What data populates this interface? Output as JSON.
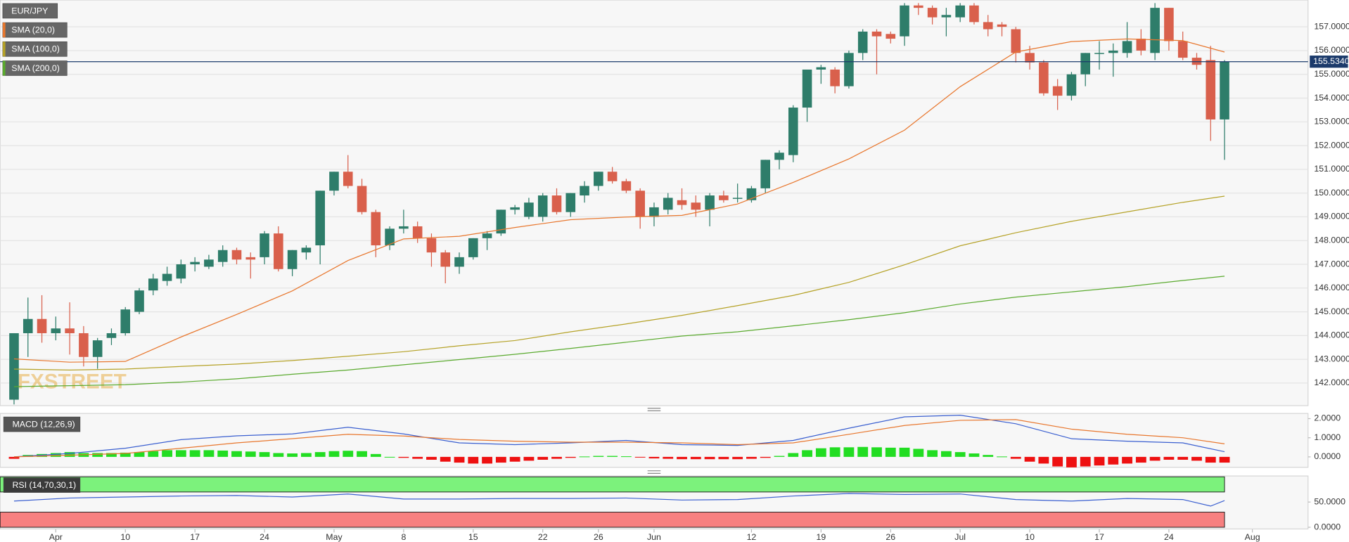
{
  "chart_data": [
    {
      "type": "candlestick",
      "title": "EUR/JPY",
      "watermark": "FXSTREET",
      "up_color": "#2e7d6a",
      "down_color": "#d9604c",
      "open": [
        141.3,
        144.1,
        144.7,
        144.1,
        144.3,
        144.1,
        143.1,
        143.9,
        144.1,
        145.0,
        145.9,
        146.3,
        146.4,
        147.0,
        146.9,
        147.1,
        147.6,
        147.3,
        147.3,
        148.3,
        146.8,
        147.5,
        147.8,
        150.1,
        150.9,
        150.3,
        149.2,
        147.8,
        148.5,
        148.6,
        148.1,
        147.5,
        146.9,
        147.3,
        148.1,
        148.3,
        149.3,
        149.0,
        149.0,
        149.9,
        149.2,
        149.9,
        150.3,
        150.9,
        150.5,
        150.1,
        149.0,
        149.3,
        149.7,
        149.6,
        149.3,
        149.9,
        149.8,
        149.7,
        150.2,
        151.4,
        151.6,
        153.6,
        155.2,
        155.2,
        154.5,
        155.9,
        156.8,
        156.7,
        156.6,
        157.9,
        157.8,
        157.4,
        157.4,
        157.9,
        157.2,
        157.1,
        156.9,
        155.9,
        155.5,
        154.5,
        154.1,
        155.0,
        155.9,
        155.9,
        155.9,
        156.5,
        155.9,
        157.8,
        156.4,
        155.7,
        155.6,
        153.1
      ],
      "high": [
        144.1,
        145.6,
        145.7,
        144.8,
        145.4,
        144.4,
        143.9,
        144.3,
        145.2,
        146.0,
        146.6,
        146.9,
        147.2,
        147.3,
        147.4,
        147.8,
        147.7,
        147.5,
        148.4,
        148.6,
        147.6,
        147.8,
        150.1,
        150.9,
        151.6,
        150.6,
        149.3,
        148.6,
        149.3,
        148.8,
        148.3,
        147.6,
        147.5,
        148.1,
        148.4,
        149.3,
        149.5,
        149.8,
        150.0,
        150.2,
        150.0,
        150.5,
        150.9,
        151.1,
        150.6,
        150.2,
        149.6,
        150.0,
        150.2,
        149.9,
        150.0,
        150.1,
        150.4,
        150.3,
        151.4,
        151.8,
        153.7,
        155.2,
        155.4,
        155.3,
        156.0,
        156.9,
        156.9,
        156.8,
        158.0,
        158.0,
        157.9,
        157.8,
        158.0,
        158.0,
        157.5,
        157.2,
        157.0,
        156.2,
        155.6,
        154.8,
        155.1,
        155.9,
        156.4,
        156.3,
        157.2,
        156.9,
        158.0,
        157.8,
        156.8,
        155.9,
        156.2,
        155.6
      ],
      "low": [
        141.1,
        143.1,
        143.7,
        143.8,
        143.2,
        142.7,
        142.6,
        143.6,
        144.0,
        144.9,
        145.7,
        146.1,
        146.2,
        146.7,
        146.8,
        146.9,
        147.0,
        146.4,
        147.0,
        146.7,
        146.5,
        147.2,
        147.0,
        149.9,
        150.2,
        149.1,
        147.3,
        147.6,
        148.3,
        147.9,
        146.9,
        146.2,
        146.6,
        147.2,
        147.6,
        148.2,
        149.1,
        148.9,
        148.8,
        149.1,
        149.0,
        149.6,
        150.1,
        150.4,
        150.0,
        148.5,
        148.6,
        149.1,
        149.3,
        149.0,
        148.6,
        149.6,
        149.6,
        149.6,
        150.0,
        151.0,
        151.3,
        153.0,
        154.6,
        154.2,
        154.4,
        155.6,
        155.0,
        156.3,
        156.2,
        157.5,
        157.1,
        156.6,
        157.2,
        157.1,
        156.6,
        156.6,
        155.5,
        155.2,
        154.1,
        153.5,
        153.9,
        154.5,
        155.2,
        154.9,
        155.7,
        155.8,
        155.6,
        156.0,
        155.6,
        155.2,
        152.2,
        151.4
      ],
      "close": [
        144.1,
        144.7,
        144.1,
        144.3,
        144.1,
        143.1,
        143.8,
        144.1,
        145.1,
        145.9,
        146.4,
        146.6,
        147.0,
        147.1,
        147.2,
        147.6,
        147.2,
        147.2,
        148.3,
        146.8,
        147.6,
        147.7,
        150.1,
        150.9,
        150.3,
        149.2,
        147.8,
        148.5,
        148.6,
        148.1,
        147.5,
        146.9,
        147.3,
        148.1,
        148.3,
        149.3,
        149.4,
        149.6,
        149.9,
        149.2,
        150.0,
        150.3,
        150.9,
        150.5,
        150.1,
        149.0,
        149.4,
        149.8,
        149.5,
        149.3,
        149.9,
        149.7,
        149.8,
        150.2,
        151.4,
        151.7,
        153.6,
        155.2,
        155.3,
        154.5,
        155.9,
        156.8,
        156.6,
        156.5,
        157.9,
        157.8,
        157.4,
        157.5,
        157.9,
        157.2,
        156.9,
        157.0,
        155.9,
        155.5,
        154.2,
        154.1,
        155.0,
        155.9,
        155.9,
        156.0,
        156.4,
        156.0,
        157.8,
        156.4,
        155.7,
        155.4,
        153.1,
        155.534
      ],
      "overlays": [
        {
          "name": "SMA (20,0)",
          "color": "#e8772e",
          "x": [
            0,
            4,
            8,
            12,
            16,
            20,
            24,
            28,
            32,
            36,
            40,
            44,
            48,
            52,
            56,
            60,
            64,
            68,
            72,
            76,
            80,
            84,
            87
          ],
          "values": [
            143.02,
            142.88,
            142.91,
            143.94,
            144.89,
            145.88,
            147.16,
            148.07,
            148.18,
            148.55,
            148.88,
            148.99,
            149.06,
            149.54,
            150.45,
            151.44,
            152.65,
            154.48,
            155.94,
            156.38,
            156.49,
            156.42,
            155.94
          ]
        },
        {
          "name": "SMA (100,0)",
          "color": "#b5a227",
          "x": [
            0,
            4,
            8,
            12,
            16,
            20,
            24,
            28,
            32,
            36,
            40,
            44,
            48,
            52,
            56,
            60,
            64,
            68,
            72,
            76,
            80,
            84,
            87
          ],
          "values": [
            142.59,
            142.55,
            142.59,
            142.7,
            142.8,
            142.95,
            143.13,
            143.32,
            143.57,
            143.79,
            144.16,
            144.49,
            144.85,
            145.26,
            145.69,
            146.24,
            146.98,
            147.78,
            148.33,
            148.81,
            149.21,
            149.61,
            149.87
          ]
        },
        {
          "name": "SMA (200,0)",
          "color": "#5aaa2e",
          "x": [
            0,
            4,
            8,
            12,
            16,
            20,
            24,
            28,
            32,
            36,
            40,
            44,
            48,
            52,
            56,
            60,
            64,
            68,
            72,
            76,
            80,
            84,
            87
          ],
          "values": [
            141.85,
            141.89,
            141.93,
            142.04,
            142.18,
            142.37,
            142.55,
            142.77,
            142.99,
            143.21,
            143.46,
            143.72,
            143.98,
            144.16,
            144.41,
            144.67,
            144.96,
            145.33,
            145.62,
            145.84,
            146.06,
            146.32,
            146.5
          ]
        }
      ],
      "last_price": 155.534,
      "last_price_label": "155.5340",
      "last_price_color": "#1b3a6b",
      "xlim": [
        -1,
        93
      ],
      "xticks": [
        {
          "value": 3,
          "label": "Apr"
        },
        {
          "value": 8,
          "label": "10"
        },
        {
          "value": 13,
          "label": "17"
        },
        {
          "value": 18,
          "label": "24"
        },
        {
          "value": 23,
          "label": "May"
        },
        {
          "value": 28,
          "label": "8"
        },
        {
          "value": 33,
          "label": "15"
        },
        {
          "value": 38,
          "label": "22"
        },
        {
          "value": 42,
          "label": "26"
        },
        {
          "value": 46,
          "label": "Jun"
        },
        {
          "value": 53,
          "label": "12"
        },
        {
          "value": 58,
          "label": "19"
        },
        {
          "value": 63,
          "label": "26"
        },
        {
          "value": 68,
          "label": "Jul"
        },
        {
          "value": 73,
          "label": "10"
        },
        {
          "value": 78,
          "label": "17"
        },
        {
          "value": 83,
          "label": "24"
        },
        {
          "value": 89,
          "label": "Aug"
        }
      ],
      "ylim": [
        141.05,
        158.13
      ],
      "yticks": [
        {
          "value": 142,
          "label": "142.0000"
        },
        {
          "value": 143,
          "label": "143.0000"
        },
        {
          "value": 144,
          "label": "144.0000"
        },
        {
          "value": 145,
          "label": "145.0000"
        },
        {
          "value": 146,
          "label": "146.0000"
        },
        {
          "value": 147,
          "label": "147.0000"
        },
        {
          "value": 148,
          "label": "148.0000"
        },
        {
          "value": 149,
          "label": "149.0000"
        },
        {
          "value": 150,
          "label": "150.0000"
        },
        {
          "value": 151,
          "label": "151.0000"
        },
        {
          "value": 152,
          "label": "152.0000"
        },
        {
          "value": 153,
          "label": "153.0000"
        },
        {
          "value": 154,
          "label": "154.0000"
        },
        {
          "value": 155,
          "label": "155.0000"
        },
        {
          "value": 156,
          "label": "156.0000"
        },
        {
          "value": 157,
          "label": "157.0000"
        }
      ],
      "grid": true
    },
    {
      "type": "combo",
      "title": "MACD (12,26,9)",
      "histogram": {
        "up_color": "#22dd22",
        "down_color": "#ee1111",
        "values": [
          -0.1,
          0.1,
          0.15,
          0.2,
          0.25,
          0.2,
          0.2,
          0.2,
          0.22,
          0.25,
          0.3,
          0.35,
          0.35,
          0.35,
          0.35,
          0.33,
          0.3,
          0.28,
          0.25,
          0.2,
          0.18,
          0.2,
          0.25,
          0.3,
          0.32,
          0.3,
          0.15,
          0.0,
          -0.05,
          -0.1,
          -0.15,
          -0.25,
          -0.3,
          -0.35,
          -0.35,
          -0.3,
          -0.25,
          -0.2,
          -0.15,
          -0.1,
          -0.05,
          0.02,
          0.05,
          0.05,
          0.03,
          -0.03,
          -0.08,
          -0.1,
          -0.12,
          -0.12,
          -0.12,
          -0.12,
          -0.12,
          -0.1,
          -0.05,
          0.05,
          0.2,
          0.35,
          0.45,
          0.5,
          0.5,
          0.52,
          0.5,
          0.48,
          0.48,
          0.42,
          0.35,
          0.3,
          0.25,
          0.18,
          0.1,
          0.02,
          -0.1,
          -0.25,
          -0.35,
          -0.5,
          -0.55,
          -0.5,
          -0.45,
          -0.4,
          -0.35,
          -0.3,
          -0.2,
          -0.15,
          -0.15,
          -0.2,
          -0.3,
          -0.3
        ]
      },
      "lines": [
        {
          "color": "#3a5fd0",
          "x": [
            0,
            4,
            8,
            12,
            16,
            20,
            24,
            28,
            32,
            36,
            40,
            44,
            48,
            52,
            56,
            60,
            64,
            68,
            72,
            76,
            80,
            84,
            87
          ],
          "values": [
            0,
            0.18,
            0.45,
            0.9,
            1.1,
            1.2,
            1.55,
            1.2,
            0.73,
            0.64,
            0.73,
            0.86,
            0.64,
            0.6,
            0.86,
            1.5,
            2.09,
            2.18,
            1.73,
            0.95,
            0.82,
            0.73,
            0.27
          ]
        },
        {
          "color": "#e8772e",
          "x": [
            0,
            4,
            8,
            12,
            16,
            20,
            24,
            28,
            32,
            36,
            40,
            44,
            48,
            52,
            56,
            60,
            64,
            68,
            72,
            76,
            80,
            84,
            87
          ],
          "values": [
            0,
            0.09,
            0.18,
            0.45,
            0.73,
            0.95,
            1.18,
            1.09,
            0.91,
            0.82,
            0.77,
            0.77,
            0.73,
            0.64,
            0.73,
            1.18,
            1.64,
            1.91,
            1.95,
            1.45,
            1.18,
            1.0,
            0.68
          ]
        }
      ],
      "ylim": [
        -0.545,
        2.27
      ],
      "yticks": [
        {
          "value": 2,
          "label": "2.0000"
        },
        {
          "value": 1,
          "label": "1.0000"
        },
        {
          "value": 0,
          "label": "0.0000"
        }
      ]
    },
    {
      "type": "line",
      "title": "RSI (14,70,30,1)",
      "bands": [
        {
          "from": 70,
          "to": 100,
          "color": "#7cf27c"
        },
        {
          "from": 0,
          "to": 30,
          "color": "#f78080"
        }
      ],
      "lines": [
        {
          "color": "#3a5fd0",
          "x": [
            0,
            4,
            8,
            12,
            16,
            20,
            24,
            28,
            32,
            36,
            40,
            44,
            48,
            52,
            56,
            60,
            64,
            68,
            72,
            76,
            80,
            84,
            86,
            87
          ],
          "values": [
            52,
            58,
            60,
            62,
            63,
            60,
            66,
            56,
            56,
            57,
            57,
            58,
            54,
            55,
            62,
            67,
            65,
            66,
            55,
            52,
            57,
            55,
            42,
            53
          ]
        }
      ],
      "ylim": [
        -3.4,
        101.7
      ],
      "yticks": [
        {
          "value": 50,
          "label": "50.0000"
        },
        {
          "value": 0,
          "label": "0.0000"
        }
      ]
    }
  ]
}
